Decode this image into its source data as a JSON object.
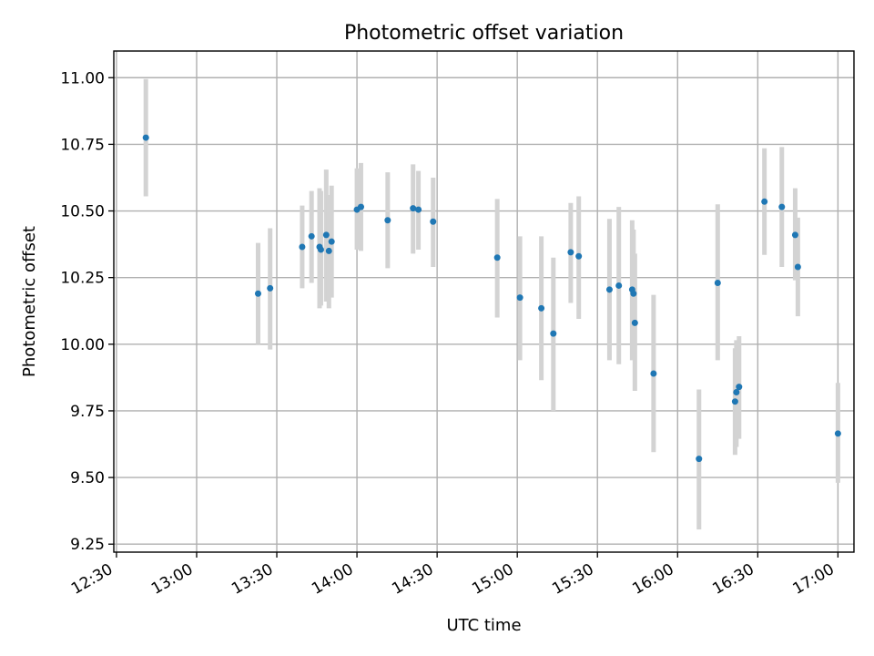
{
  "chart_data": {
    "type": "scatter",
    "title": "Photometric offset variation",
    "xlabel": "UTC time",
    "ylabel": "Photometric offset",
    "xlim_minutes": [
      749,
      1026
    ],
    "ylim": [
      9.22,
      11.1
    ],
    "x_ticks": [
      {
        "minutes": 750,
        "label": "12:30"
      },
      {
        "minutes": 780,
        "label": "13:00"
      },
      {
        "minutes": 810,
        "label": "13:30"
      },
      {
        "minutes": 840,
        "label": "14:00"
      },
      {
        "minutes": 870,
        "label": "14:30"
      },
      {
        "minutes": 900,
        "label": "15:00"
      },
      {
        "minutes": 930,
        "label": "15:30"
      },
      {
        "minutes": 960,
        "label": "16:00"
      },
      {
        "minutes": 990,
        "label": "16:30"
      },
      {
        "minutes": 1020,
        "label": "17:00"
      }
    ],
    "y_ticks": [
      {
        "value": 9.25,
        "label": "9.25"
      },
      {
        "value": 9.5,
        "label": "9.50"
      },
      {
        "value": 9.75,
        "label": "9.75"
      },
      {
        "value": 10.0,
        "label": "10.00"
      },
      {
        "value": 10.25,
        "label": "10.25"
      },
      {
        "value": 10.5,
        "label": "10.50"
      },
      {
        "value": 10.75,
        "label": "10.75"
      },
      {
        "value": 11.0,
        "label": "11.00"
      }
    ],
    "grid": true,
    "point_color": "#1f77b4",
    "errorbar_color": "#d3d3d3",
    "points": [
      {
        "t": 761.0,
        "y": 10.775,
        "lo": 10.555,
        "hi": 10.995
      },
      {
        "t": 803.0,
        "y": 10.19,
        "lo": 10.0,
        "hi": 10.38
      },
      {
        "t": 807.5,
        "y": 10.21,
        "lo": 9.98,
        "hi": 10.435
      },
      {
        "t": 819.5,
        "y": 10.365,
        "lo": 10.21,
        "hi": 10.52
      },
      {
        "t": 823.0,
        "y": 10.405,
        "lo": 10.23,
        "hi": 10.575
      },
      {
        "t": 826.0,
        "y": 10.365,
        "lo": 10.135,
        "hi": 10.585
      },
      {
        "t": 826.5,
        "y": 10.355,
        "lo": 10.145,
        "hi": 10.575
      },
      {
        "t": 828.5,
        "y": 10.41,
        "lo": 10.16,
        "hi": 10.655
      },
      {
        "t": 829.5,
        "y": 10.35,
        "lo": 10.135,
        "hi": 10.56
      },
      {
        "t": 830.5,
        "y": 10.385,
        "lo": 10.175,
        "hi": 10.595
      },
      {
        "t": 840.0,
        "y": 10.505,
        "lo": 10.355,
        "hi": 10.66
      },
      {
        "t": 841.5,
        "y": 10.515,
        "lo": 10.35,
        "hi": 10.68
      },
      {
        "t": 851.5,
        "y": 10.465,
        "lo": 10.285,
        "hi": 10.645
      },
      {
        "t": 861.0,
        "y": 10.51,
        "lo": 10.34,
        "hi": 10.675
      },
      {
        "t": 863.0,
        "y": 10.505,
        "lo": 10.355,
        "hi": 10.65
      },
      {
        "t": 868.5,
        "y": 10.46,
        "lo": 10.29,
        "hi": 10.625
      },
      {
        "t": 892.5,
        "y": 10.325,
        "lo": 10.1,
        "hi": 10.545
      },
      {
        "t": 901.0,
        "y": 10.175,
        "lo": 9.94,
        "hi": 10.405
      },
      {
        "t": 909.0,
        "y": 10.135,
        "lo": 9.865,
        "hi": 10.405
      },
      {
        "t": 913.5,
        "y": 10.04,
        "lo": 9.75,
        "hi": 10.325
      },
      {
        "t": 920.0,
        "y": 10.345,
        "lo": 10.155,
        "hi": 10.53
      },
      {
        "t": 923.0,
        "y": 10.33,
        "lo": 10.095,
        "hi": 10.555
      },
      {
        "t": 934.5,
        "y": 10.205,
        "lo": 9.94,
        "hi": 10.47
      },
      {
        "t": 938.0,
        "y": 10.22,
        "lo": 9.925,
        "hi": 10.515
      },
      {
        "t": 943.0,
        "y": 10.205,
        "lo": 9.94,
        "hi": 10.465
      },
      {
        "t": 943.5,
        "y": 10.19,
        "lo": 9.95,
        "hi": 10.43
      },
      {
        "t": 944.0,
        "y": 10.08,
        "lo": 9.825,
        "hi": 10.34
      },
      {
        "t": 951.0,
        "y": 9.89,
        "lo": 9.595,
        "hi": 10.185
      },
      {
        "t": 968.0,
        "y": 9.57,
        "lo": 9.305,
        "hi": 9.83
      },
      {
        "t": 975.0,
        "y": 10.23,
        "lo": 9.94,
        "hi": 10.525
      },
      {
        "t": 981.5,
        "y": 9.785,
        "lo": 9.585,
        "hi": 9.985
      },
      {
        "t": 982.0,
        "y": 9.82,
        "lo": 9.615,
        "hi": 10.015
      },
      {
        "t": 983.0,
        "y": 9.84,
        "lo": 9.645,
        "hi": 10.03
      },
      {
        "t": 992.5,
        "y": 10.535,
        "lo": 10.335,
        "hi": 10.735
      },
      {
        "t": 999.0,
        "y": 10.515,
        "lo": 10.29,
        "hi": 10.74
      },
      {
        "t": 1004.0,
        "y": 10.41,
        "lo": 10.24,
        "hi": 10.585
      },
      {
        "t": 1005.0,
        "y": 10.29,
        "lo": 10.105,
        "hi": 10.475
      },
      {
        "t": 1020.0,
        "y": 9.665,
        "lo": 9.48,
        "hi": 9.855
      }
    ]
  }
}
